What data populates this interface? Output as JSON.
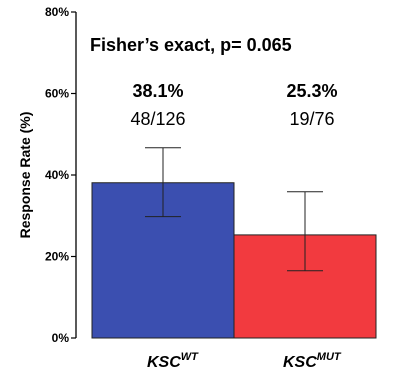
{
  "chart_data": {
    "type": "bar",
    "title": "",
    "annotation": "Fisher’s exact, p= 0.065",
    "ylabel": "Response Rate (%)",
    "ylim": [
      0,
      80
    ],
    "yticks": [
      0,
      20,
      40,
      60,
      80
    ],
    "ytick_labels": [
      "0%",
      "20%",
      "40%",
      "60%",
      "80%"
    ],
    "categories": [
      {
        "base": "KSC",
        "sup": "WT"
      },
      {
        "base": "KSC",
        "sup": "MUT"
      }
    ],
    "values": [
      38.1,
      25.3
    ],
    "error_low": [
      29.8,
      16.5
    ],
    "error_high": [
      46.7,
      35.9
    ],
    "percent_labels": [
      "38.1%",
      "25.3%"
    ],
    "count_labels": [
      "48/126",
      "19/76"
    ],
    "colors": [
      "#3b4fb0",
      "#f23a3f"
    ],
    "grid": false
  }
}
